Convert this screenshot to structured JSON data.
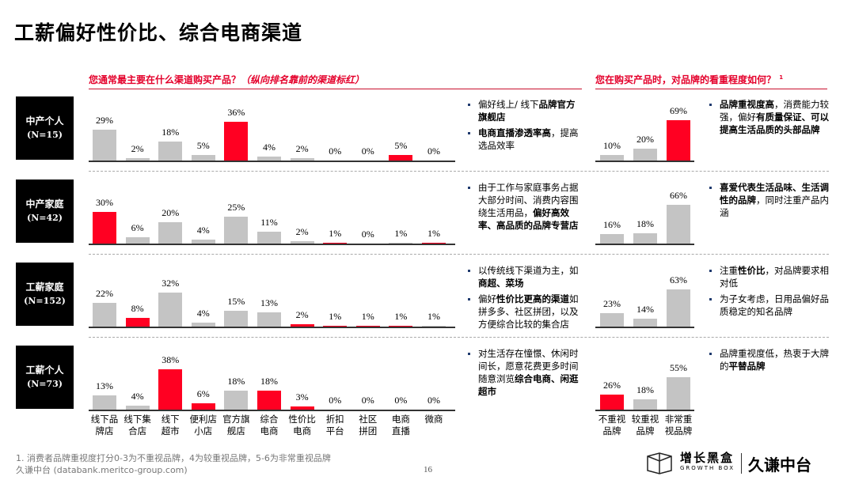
{
  "title": "工薪偏好性价比、综合电商渠道",
  "left_question": {
    "main": "您通常最主要在什么渠道购买产品？",
    "note": "（纵向排名靠前的渠道标红）"
  },
  "right_question": {
    "main": "您在购买产品时，对品牌的看重程度如何？",
    "sup": "1"
  },
  "colors": {
    "highlight": "#ff0022",
    "normal": "#c4c4c4"
  },
  "chart_data": [
    {
      "type": "bar",
      "categories": [
        "线下品牌店",
        "线下集合店",
        "线下超市",
        "便利店小店",
        "官方旗舰店",
        "综合电商",
        "性价比电商",
        "折扣平台",
        "社区拼团",
        "电商直播",
        "微商"
      ],
      "category_lines": [
        [
          "线下品",
          "牌店"
        ],
        [
          "线下集",
          "合店"
        ],
        [
          "线下",
          "超市"
        ],
        [
          "便利店",
          "小店"
        ],
        [
          "官方旗",
          "舰店"
        ],
        [
          "综合",
          "电商"
        ],
        [
          "性价比",
          "电商"
        ],
        [
          "折扣",
          "平台"
        ],
        [
          "社区",
          "拼团"
        ],
        [
          "电商",
          "直播"
        ],
        [
          "微商",
          ""
        ]
      ],
      "series": [
        {
          "name": "中产个人",
          "values": [
            29,
            2,
            18,
            5,
            36,
            4,
            2,
            0,
            0,
            5,
            0
          ],
          "highlight": [
            4,
            9
          ]
        },
        {
          "name": "中产家庭",
          "values": [
            30,
            6,
            20,
            4,
            25,
            11,
            2,
            1,
            0,
            1,
            1
          ],
          "highlight": [
            0,
            7,
            10
          ]
        },
        {
          "name": "工薪家庭",
          "values": [
            22,
            8,
            32,
            4,
            15,
            13,
            2,
            1,
            1,
            1,
            1
          ],
          "highlight": [
            1,
            6,
            7,
            8,
            9
          ]
        },
        {
          "name": "工薪个人",
          "values": [
            13,
            4,
            38,
            6,
            18,
            18,
            3,
            0,
            0,
            0,
            0
          ],
          "highlight": [
            2,
            3,
            5,
            6
          ]
        }
      ],
      "unit": "%"
    },
    {
      "type": "bar",
      "categories": [
        "不重视品牌",
        "较重视品牌",
        "非常重视品牌"
      ],
      "category_lines": [
        [
          "不重视",
          "品牌"
        ],
        [
          "较重视",
          "品牌"
        ],
        [
          "非常重",
          "视品牌"
        ]
      ],
      "series": [
        {
          "name": "中产个人",
          "values": [
            10,
            20,
            69
          ],
          "highlight": [
            2
          ]
        },
        {
          "name": "中产家庭",
          "values": [
            16,
            18,
            66
          ],
          "highlight": []
        },
        {
          "name": "工薪家庭",
          "values": [
            23,
            14,
            63
          ],
          "highlight": []
        },
        {
          "name": "工薪个人",
          "values": [
            26,
            18,
            55
          ],
          "highlight": [
            0
          ]
        }
      ],
      "unit": "%"
    }
  ],
  "segments": [
    {
      "name": "中产个人",
      "n": "(N=15)",
      "channel_notes": [
        "偏好线上/ 线下<b>品牌官方旗舰店</b>",
        "<b>电商直播渗透率高</b>，提高选品效率"
      ],
      "brand_notes": [
        "<b>品牌重视度高</b>，消费能力较强，偏好<b>有质量保证、可以提高生活品质的头部品牌</b>"
      ]
    },
    {
      "name": "中产家庭",
      "n": "(N=42)",
      "channel_notes": [
        "由于工作与家庭事务占据大部分时间、消费内容围绕生活用品，<b>偏好高效率、高品质的品牌专营店</b>"
      ],
      "brand_notes": [
        "<b>喜爱代表生活品味、生活调性的品牌</b>，同时注重产品内涵"
      ]
    },
    {
      "name": "工薪家庭",
      "n": "(N=152)",
      "channel_notes": [
        "以传统线下渠道为主，如<b>商超、菜场</b>",
        "偏好<b>性价比更高的渠道</b>如拼多多、社区拼团，以及方便综合比较的集合店"
      ],
      "brand_notes": [
        "注重<b>性价比</b>，对品牌要求相对低",
        "为子女考虑，日用品偏好品质稳定的知名品牌"
      ]
    },
    {
      "name": "工薪个人",
      "n": "(N=73)",
      "channel_notes": [
        "对生活存在憧憬、休闲时间长，愿意花费更多时间随意浏览<b>综合电商、闲逛超市</b>"
      ],
      "brand_notes": [
        "品牌重视度低，热衷于大牌的<b>平替品牌</b>"
      ]
    }
  ],
  "footnote": "1. 消费者品牌重视度打分0-3为不重视品牌，4为较重视品牌，5-6为非常重视品牌",
  "source": "久谦中台 (databank.meritco-group.com)",
  "page_number": "16",
  "logo": {
    "growth_box_cn": "增长黑盒",
    "growth_box_en": "GROWTH BOX",
    "jiuqian": "久谦中台"
  }
}
